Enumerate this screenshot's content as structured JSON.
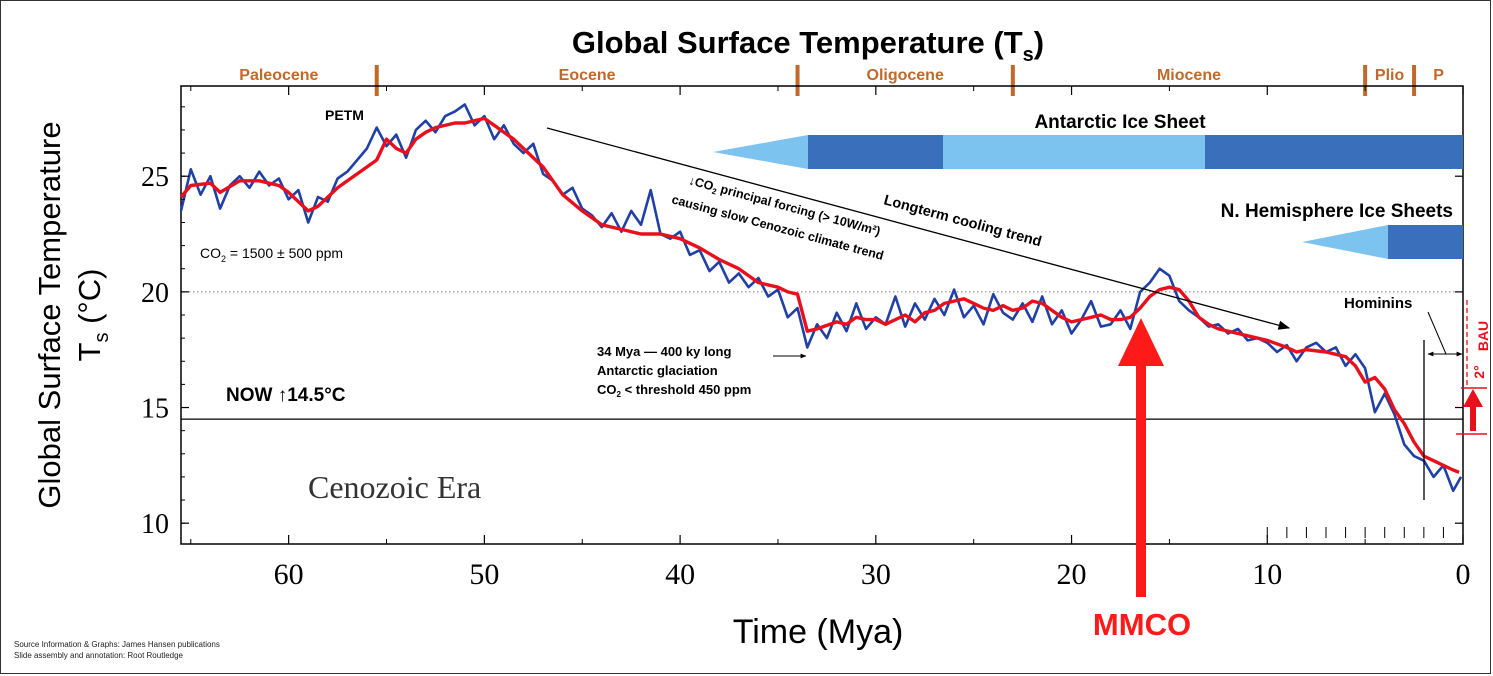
{
  "chart_data": {
    "type": "line",
    "title": "Global Surface Temperature (T",
    "title_sub": "s",
    "title_close": ")",
    "ylabel_line1": "Global Surface Temperature",
    "ylabel_line2": "T",
    "ylabel_sub": "s",
    "ylabel_unit": " (°C)",
    "xlabel": "Time (Mya)",
    "x_reversed": true,
    "xlim": [
      65.5,
      0
    ],
    "ylim": [
      9.1,
      28.9
    ],
    "x_ticks": [
      60,
      50,
      40,
      30,
      20,
      10,
      0
    ],
    "y_ticks": [
      10,
      15,
      20,
      25
    ],
    "grid": "dotted line at 20 °C",
    "epochs": [
      {
        "name": "Paleocene",
        "start": 65.5,
        "end": 55.5
      },
      {
        "name": "Eocene",
        "start": 55.5,
        "end": 34.0
      },
      {
        "name": "Oligocene",
        "start": 34.0,
        "end": 23.0
      },
      {
        "name": "Miocene",
        "start": 23.0,
        "end": 5.0
      },
      {
        "name": "Plio",
        "start": 5.0,
        "end": 2.5
      },
      {
        "name": "P",
        "start": 2.5,
        "end": 0.0
      }
    ],
    "series": [
      {
        "role": "raw",
        "color": "#2140a6",
        "x": [
          65.5,
          65,
          64.5,
          64,
          63.5,
          63,
          62.5,
          62,
          61.5,
          61,
          60.5,
          60,
          59.5,
          59,
          58.5,
          58,
          57.5,
          57,
          56.5,
          56,
          55.5,
          55,
          54.5,
          54,
          53.5,
          53,
          52.5,
          52,
          51.5,
          51,
          50.5,
          50,
          49.5,
          49,
          48.5,
          48,
          47.5,
          47,
          46.5,
          46,
          45.5,
          45,
          44.5,
          44,
          43.5,
          43,
          42.5,
          42,
          41.5,
          41,
          40.5,
          40,
          39.5,
          39,
          38.5,
          38,
          37.5,
          37,
          36.5,
          36,
          35.5,
          35,
          34.5,
          34,
          33.5,
          33,
          32.5,
          32,
          31.5,
          31,
          30.5,
          30,
          29.5,
          29,
          28.5,
          28,
          27.5,
          27,
          26.5,
          26,
          25.5,
          25,
          24.5,
          24,
          23.5,
          23,
          22.5,
          22,
          21.5,
          21,
          20.5,
          20,
          19.5,
          19,
          18.5,
          18,
          17.5,
          17,
          16.5,
          16,
          15.5,
          15,
          14.5,
          14,
          13.5,
          13,
          12.5,
          12,
          11.5,
          11,
          10.5,
          10,
          9.5,
          9,
          8.5,
          8,
          7.5,
          7,
          6.5,
          6,
          5.5,
          5,
          4.5,
          4,
          3.5,
          3,
          2.5,
          2,
          1.5,
          1,
          0.5,
          0.1
        ],
        "values": [
          23.5,
          25.3,
          24.2,
          25.0,
          23.6,
          24.6,
          25.0,
          24.5,
          25.2,
          24.6,
          24.9,
          24.0,
          24.4,
          23.0,
          24.1,
          23.9,
          24.9,
          25.2,
          25.7,
          26.2,
          27.1,
          26.3,
          26.8,
          25.8,
          27.0,
          27.4,
          26.9,
          27.6,
          27.8,
          28.1,
          27.2,
          27.6,
          26.6,
          27.2,
          26.4,
          26.0,
          26.4,
          25.1,
          24.8,
          24.2,
          24.5,
          23.6,
          23.3,
          22.8,
          23.4,
          22.6,
          23.5,
          22.9,
          24.4,
          22.5,
          22.3,
          22.6,
          21.6,
          21.8,
          20.9,
          21.3,
          20.4,
          20.8,
          20.2,
          20.6,
          19.8,
          20.1,
          18.9,
          19.3,
          17.6,
          18.6,
          18.0,
          19.1,
          18.3,
          19.5,
          18.4,
          18.9,
          18.6,
          19.8,
          18.5,
          19.5,
          18.8,
          19.7,
          19.0,
          20.1,
          18.9,
          19.4,
          18.6,
          19.9,
          19.1,
          18.8,
          19.5,
          18.7,
          19.8,
          18.6,
          19.2,
          18.2,
          18.8,
          19.6,
          18.5,
          18.6,
          19.2,
          18.4,
          20.0,
          20.4,
          21.0,
          20.7,
          19.6,
          19.2,
          18.9,
          18.5,
          18.6,
          18.2,
          18.4,
          17.9,
          18.0,
          17.8,
          17.4,
          17.7,
          17.0,
          17.6,
          17.8,
          17.4,
          17.6,
          16.8,
          17.3,
          16.7,
          14.8,
          15.6,
          14.7,
          13.4,
          12.9,
          12.7,
          12.0,
          12.5,
          11.4,
          12.0
        ]
      },
      {
        "role": "smoothed",
        "color": "#e8101c",
        "x": [
          65.5,
          65,
          64,
          63.5,
          62.5,
          61.5,
          60.5,
          60,
          59.5,
          59,
          58.5,
          57.5,
          57,
          56.5,
          55.5,
          55,
          54.5,
          54,
          53.5,
          53,
          52.5,
          51.5,
          51,
          50.5,
          50,
          49.5,
          49,
          48.5,
          48,
          47.5,
          47,
          46.5,
          46,
          45,
          44,
          43,
          42,
          41,
          40,
          39,
          38,
          37,
          36,
          35,
          34.5,
          34,
          33.5,
          33,
          32,
          31.5,
          31,
          30.5,
          30,
          29.5,
          29,
          28.5,
          28,
          27.5,
          27,
          26.5,
          26,
          25.5,
          25,
          24.5,
          24,
          23.5,
          23,
          22.5,
          22,
          21.5,
          21,
          20.5,
          20,
          19.5,
          19,
          18.5,
          18,
          17.5,
          17,
          16.5,
          16,
          15.5,
          15,
          14.5,
          14,
          13.5,
          13,
          12.5,
          12,
          11.5,
          11,
          10,
          9,
          8.5,
          8,
          7,
          6.5,
          6,
          5.5,
          5,
          4.5,
          4,
          3.5,
          3,
          2.5,
          2,
          1.5,
          1,
          0.5,
          0.2
        ],
        "values": [
          24.1,
          24.6,
          24.7,
          24.3,
          24.8,
          24.8,
          24.6,
          24.3,
          23.9,
          23.5,
          23.7,
          24.5,
          24.8,
          25.1,
          25.7,
          26.6,
          26.2,
          26.0,
          26.6,
          26.9,
          27.1,
          27.3,
          27.3,
          27.4,
          27.5,
          27.2,
          26.9,
          26.6,
          26.2,
          25.8,
          25.4,
          24.8,
          24.2,
          23.5,
          22.9,
          22.7,
          22.5,
          22.5,
          22.3,
          21.9,
          21.4,
          21.0,
          20.4,
          20.2,
          20.0,
          19.9,
          18.3,
          18.4,
          18.7,
          18.6,
          18.9,
          18.8,
          18.8,
          18.6,
          18.8,
          19.0,
          18.7,
          19.1,
          19.2,
          19.5,
          19.6,
          19.7,
          19.5,
          19.3,
          19.2,
          19.4,
          19.2,
          19.3,
          19.6,
          19.5,
          19.2,
          18.9,
          18.7,
          18.8,
          18.9,
          19.0,
          18.8,
          18.8,
          18.9,
          19.3,
          19.8,
          20.1,
          20.2,
          20.1,
          19.6,
          18.9,
          18.6,
          18.4,
          18.3,
          18.2,
          18.1,
          17.9,
          17.6,
          17.4,
          17.5,
          17.4,
          17.3,
          17.2,
          16.8,
          16.1,
          16.3,
          15.8,
          14.9,
          14.3,
          13.5,
          12.9,
          12.7,
          12.5,
          12.3,
          12.2
        ]
      }
    ],
    "annotations": {
      "petm": "PETM",
      "co2_prefix": "CO",
      "co2_sub": "2",
      "co2_suffix": " = 1500 ± 500 ppm",
      "now_label": "NOW ↑14.5°C",
      "now_value": 14.5,
      "era": "Cenozoic Era",
      "trend": "Longterm cooling trend",
      "co2_forcing_line1_prefix": "↓CO",
      "co2_forcing_line1_sub": "2",
      "co2_forcing_line1_suffix": " principal forcing (> 10W/m²)",
      "co2_forcing_line2": "causing slow Cenozoic climate trend",
      "glaciation_line1": "34 Mya — 400 ky long",
      "glaciation_line2": "Antarctic glaciation",
      "glaciation_line3_prefix": "CO",
      "glaciation_line3_sub": "2",
      "glaciation_line3_suffix": " < threshold 450 ppm",
      "antarctic": "Antarctic Ice Sheet",
      "nh_ice": "N. Hemisphere Ice Sheets",
      "hominins": "Hominins",
      "bau": "BAU",
      "two_deg": "2°",
      "mmco": "MMCO"
    },
    "colors": {
      "raw": "#2140a6",
      "smoothed": "#e8101c",
      "epoch": "#c0692a",
      "ice_dark": "#3a6fbc",
      "ice_light": "#7cc4ef",
      "mmco": "#ff1a1a"
    }
  },
  "footer": {
    "source_line1": "Source Information & Graphs: James Hansen publications",
    "source_line2": "Slide assembly and annotation: Root Routledge"
  }
}
